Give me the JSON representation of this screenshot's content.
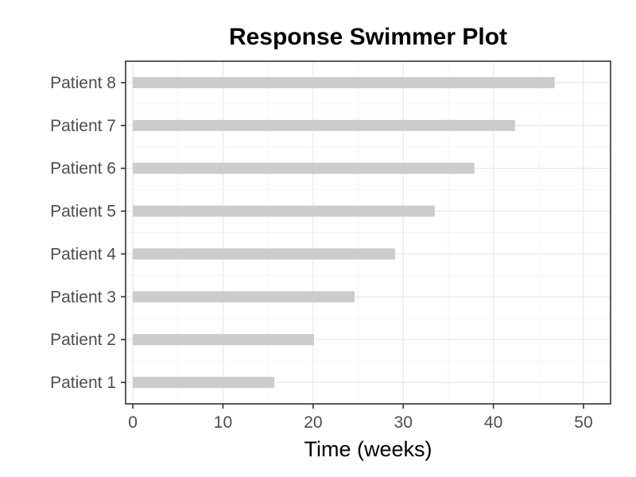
{
  "chart_data": {
    "type": "bar",
    "orientation": "horizontal",
    "title": "Response Swimmer Plot",
    "xlabel": "Time (weeks)",
    "ylabel": "",
    "categories": [
      "Patient 1",
      "Patient 2",
      "Patient 3",
      "Patient 4",
      "Patient 5",
      "Patient 6",
      "Patient 7",
      "Patient 8"
    ],
    "values": [
      15.7,
      20.1,
      24.6,
      29.1,
      33.5,
      37.9,
      42.4,
      46.8
    ],
    "xlim": [
      -0.8,
      53
    ],
    "xticks": [
      0,
      10,
      20,
      30,
      40,
      50
    ],
    "xtick_labels": [
      "0",
      "10",
      "20",
      "30",
      "40",
      "50"
    ],
    "grid": true,
    "legend": "none",
    "colors": {
      "bar": "#cccccc",
      "grid_major": "#e6e6e6",
      "grid_minor": "#f1f1f1",
      "axis": "#333333",
      "tick_text": "#4d4d4d",
      "title": "#000000"
    }
  }
}
